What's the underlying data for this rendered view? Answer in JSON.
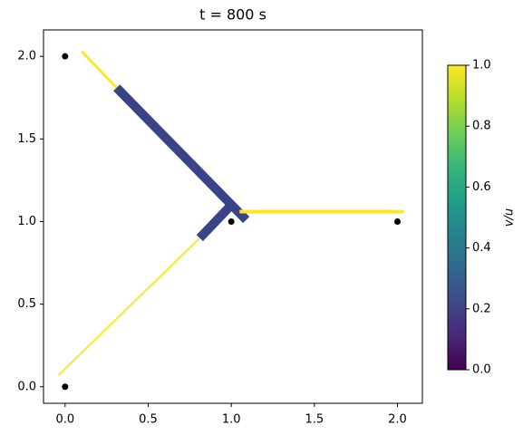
{
  "chart_data": {
    "type": "line",
    "title": "t = 800 s",
    "xlim": [
      -0.13,
      2.15
    ],
    "ylim": [
      -0.1,
      2.16
    ],
    "xticks": [
      {
        "value": 0,
        "label": "0.0"
      },
      {
        "value": 0.5,
        "label": "0.5"
      },
      {
        "value": 1,
        "label": "1.0"
      },
      {
        "value": 1.5,
        "label": "1.5"
      },
      {
        "value": 2,
        "label": "2.0"
      }
    ],
    "yticks": [
      {
        "value": 0,
        "label": "0.0"
      },
      {
        "value": 0.5,
        "label": "0.5"
      },
      {
        "value": 1,
        "label": "1.0"
      },
      {
        "value": 1.5,
        "label": "1.5"
      },
      {
        "value": 2,
        "label": "2.0"
      }
    ],
    "series": [
      {
        "color": "#fde725",
        "linewidth": 3,
        "x": [
          0.1,
          0.31
        ],
        "y": [
          2.03,
          1.81
        ]
      },
      {
        "color": "#3b4388",
        "linewidth": 10,
        "x": [
          0.31,
          1.09
        ],
        "y": [
          1.81,
          1.01
        ]
      },
      {
        "color": "#3b4388",
        "linewidth": 10,
        "x": [
          0.81,
          1.0
        ],
        "y": [
          0.9,
          1.1
        ]
      },
      {
        "color": "#fde725",
        "linewidth": 2,
        "x": [
          -0.04,
          0.81
        ],
        "y": [
          0.07,
          0.9
        ]
      },
      {
        "color": "#fde725",
        "linewidth": 4,
        "x": [
          1.05,
          2.04
        ],
        "y": [
          1.06,
          1.06
        ]
      }
    ],
    "points": {
      "color": "#000000",
      "x": [
        0,
        1,
        2,
        0
      ],
      "y": [
        2,
        1,
        1,
        0
      ]
    },
    "colorbar": {
      "label": "v/u",
      "clim": [
        0,
        1
      ],
      "colormap": [
        "#440154",
        "#482878",
        "#3e4989",
        "#31688e",
        "#26828e",
        "#1f9e89",
        "#35b779",
        "#6ece58",
        "#b5de2b",
        "#fde725"
      ],
      "ticks": [
        {
          "value": 0,
          "label": "0.0"
        },
        {
          "value": 0.2,
          "label": "0.2"
        },
        {
          "value": 0.4,
          "label": "0.4"
        },
        {
          "value": 0.6,
          "label": "0.6"
        },
        {
          "value": 0.8,
          "label": "0.8"
        },
        {
          "value": 1,
          "label": "1.0"
        }
      ]
    }
  }
}
